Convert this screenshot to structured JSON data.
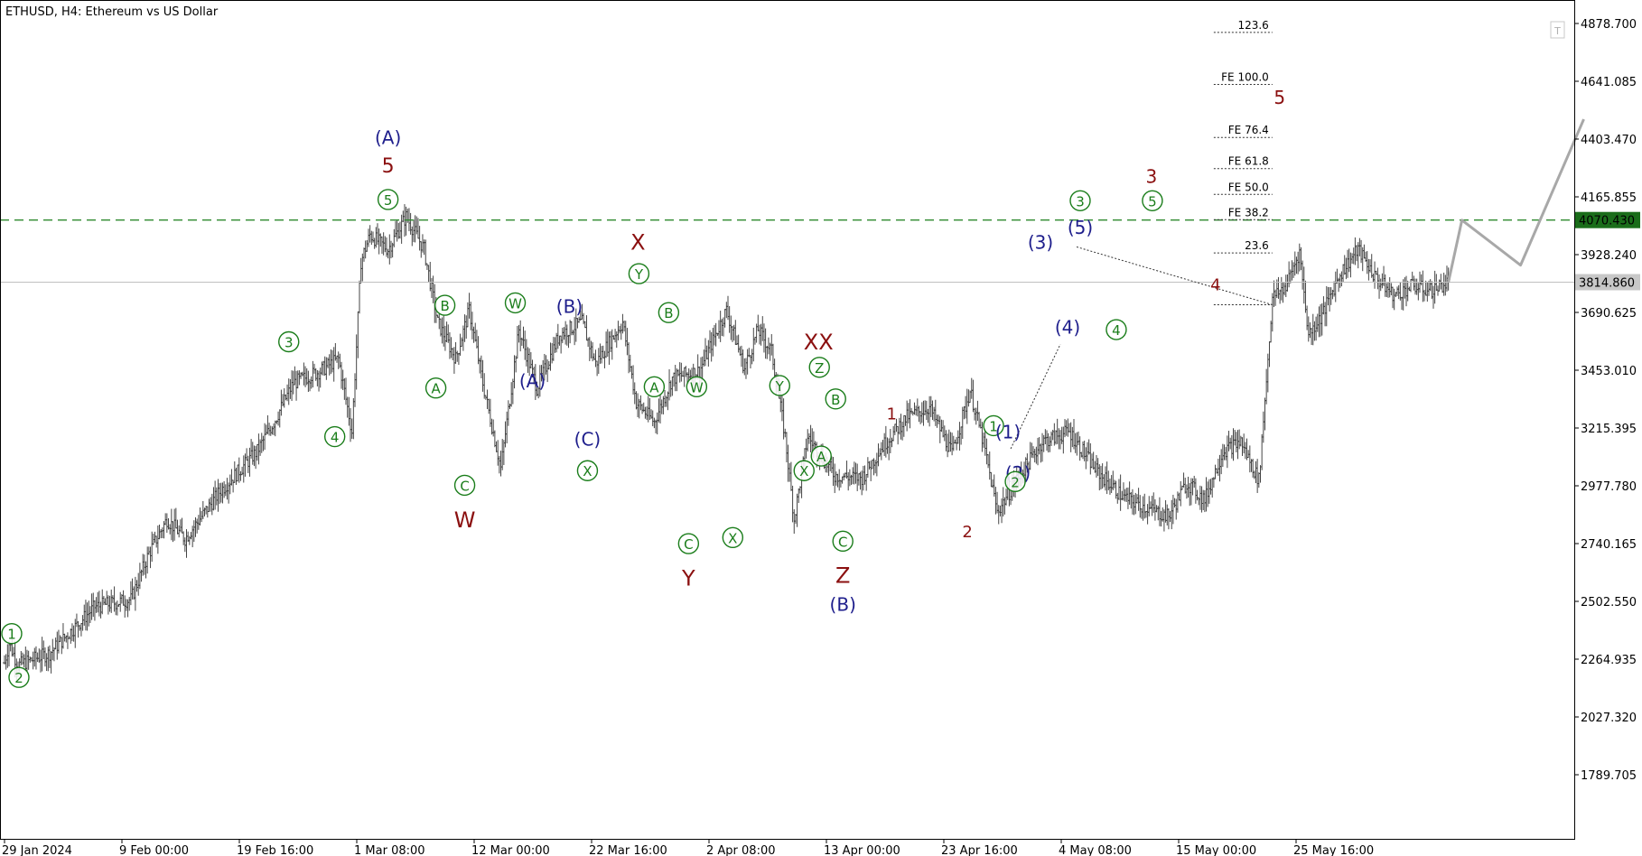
{
  "title": "ETHUSD, H4:  Ethereum vs US Dollar",
  "colors": {
    "green": "#1a7d1a",
    "navy": "#1e1e8c",
    "maroon": "#8b1010",
    "bars": "#444444",
    "projection": "#a8a8a8",
    "resistance": "#2f8a2f",
    "price_tag_bg": "#1a6d1a",
    "current_tag_bg": "#c8c8c8"
  },
  "chart_data": {
    "type": "ohlc-bars",
    "symbol": "ETHUSD",
    "timeframe": "H4",
    "ylim": [
      1600,
      4950
    ],
    "y_ticks": [
      1789.705,
      2027.32,
      2264.935,
      2502.55,
      2740.165,
      2977.78,
      3215.395,
      3453.01,
      3690.625,
      3928.24,
      4165.855,
      4403.47,
      4641.085,
      4878.7
    ],
    "x_tick_labels": [
      "29 Jan 2024",
      "9 Feb 00:00",
      "19 Feb 16:00",
      "1 Mar 08:00",
      "12 Mar 00:00",
      "22 Mar 16:00",
      "2 Apr 08:00",
      "13 Apr 00:00",
      "23 Apr 16:00",
      "4 May 08:00",
      "15 May 00:00",
      "25 May 16:00"
    ],
    "x_span_days": 173,
    "price_anchors": [
      [
        0.0,
        2250
      ],
      [
        0.5,
        2330
      ],
      [
        1.5,
        2240
      ],
      [
        5,
        2290
      ],
      [
        10,
        2480
      ],
      [
        14,
        2510
      ],
      [
        16,
        2700
      ],
      [
        18,
        2840
      ],
      [
        20,
        2760
      ],
      [
        24,
        2960
      ],
      [
        28,
        3120
      ],
      [
        30,
        3250
      ],
      [
        32,
        3400
      ],
      [
        35,
        3450
      ],
      [
        37,
        3500
      ],
      [
        38.5,
        3200
      ],
      [
        39.5,
        3900
      ],
      [
        40.5,
        4010
      ],
      [
        42.5,
        3950
      ],
      [
        44.5,
        4085
      ],
      [
        46.5,
        3950
      ],
      [
        48,
        3650
      ],
      [
        50,
        3500
      ],
      [
        51.5,
        3700
      ],
      [
        53,
        3400
      ],
      [
        55,
        3050
      ],
      [
        57,
        3620
      ],
      [
        59,
        3380
      ],
      [
        61.5,
        3600
      ],
      [
        64,
        3650
      ],
      [
        65.5,
        3480
      ],
      [
        68.5,
        3650
      ],
      [
        70,
        3320
      ],
      [
        72,
        3240
      ],
      [
        74,
        3420
      ],
      [
        77,
        3450
      ],
      [
        80,
        3700
      ],
      [
        82,
        3460
      ],
      [
        83.5,
        3620
      ],
      [
        85,
        3530
      ],
      [
        86.5,
        3180
      ],
      [
        87.5,
        2840
      ],
      [
        89,
        3180
      ],
      [
        92,
        3020
      ],
      [
        95,
        3010
      ],
      [
        97.5,
        3150
      ],
      [
        100,
        3260
      ],
      [
        102.5,
        3300
      ],
      [
        105,
        3110
      ],
      [
        107,
        3370
      ],
      [
        108.5,
        3150
      ],
      [
        110,
        2870
      ],
      [
        112.5,
        3020
      ],
      [
        115,
        3160
      ],
      [
        118,
        3200
      ],
      [
        121,
        3040
      ],
      [
        124,
        2930
      ],
      [
        127,
        2880
      ],
      [
        129,
        2850
      ],
      [
        131,
        2990
      ],
      [
        133,
        2920
      ],
      [
        135,
        3120
      ],
      [
        137,
        3160
      ],
      [
        139,
        3000
      ],
      [
        140.5,
        3750
      ],
      [
        142,
        3800
      ],
      [
        143.5,
        3940
      ],
      [
        144.5,
        3600
      ],
      [
        146,
        3680
      ],
      [
        148,
        3850
      ],
      [
        150,
        3950
      ],
      [
        152,
        3830
      ],
      [
        154,
        3760
      ],
      [
        156,
        3800
      ],
      [
        158,
        3780
      ],
      [
        160,
        3815
      ]
    ],
    "current_price_label": "3814.860",
    "resistance_level": 4070.43,
    "resistance_label": "4070.430",
    "fib_levels": [
      {
        "label": "123.6",
        "price": 4842
      },
      {
        "label": "FE 100.0",
        "price": 4628
      },
      {
        "label": "FE 76.4",
        "price": 4410
      },
      {
        "label": "FE 61.8",
        "price": 4282
      },
      {
        "label": "FE 50.0",
        "price": 4176
      },
      {
        "label": "FE 38.2",
        "price": 4072
      },
      {
        "label": "23.6",
        "price": 3935
      },
      {
        "label": "",
        "price": 3722
      }
    ],
    "projection_path": [
      [
        160,
        3815
      ],
      [
        161.5,
        4070
      ],
      [
        168,
        3885
      ],
      [
        175,
        4485
      ]
    ],
    "annotations": [
      {
        "t": "1",
        "c": "g",
        "d": 0.8,
        "p": 2370,
        "s": 20,
        "circled": true
      },
      {
        "t": "2",
        "c": "g",
        "d": 1.6,
        "p": 2190,
        "s": 20,
        "circled": true
      },
      {
        "t": "3",
        "c": "g",
        "d": 31.5,
        "p": 3570,
        "s": 20,
        "circled": true
      },
      {
        "t": "4",
        "c": "g",
        "d": 36.6,
        "p": 3180,
        "s": 20,
        "circled": true
      },
      {
        "t": "5",
        "c": "g",
        "d": 42.5,
        "p": 4155,
        "s": 20,
        "circled": true
      },
      {
        "t": "5",
        "c": "m",
        "d": 42.5,
        "p": 4295,
        "s": 22,
        "circled": false
      },
      {
        "t": "(A)",
        "c": "n",
        "d": 42.5,
        "p": 4410,
        "s": 20,
        "circled": false
      },
      {
        "t": "B",
        "c": "g",
        "d": 48.8,
        "p": 3720,
        "s": 20,
        "circled": true
      },
      {
        "t": "A",
        "c": "g",
        "d": 47.8,
        "p": 3380,
        "s": 20,
        "circled": true
      },
      {
        "t": "C",
        "c": "g",
        "d": 51,
        "p": 2980,
        "s": 20,
        "circled": true
      },
      {
        "t": "W",
        "c": "m",
        "d": 51,
        "p": 2840,
        "s": 24,
        "circled": false
      },
      {
        "t": "W",
        "c": "g",
        "d": 56.6,
        "p": 3730,
        "s": 20,
        "circled": true
      },
      {
        "t": "(A)",
        "c": "n",
        "d": 58.5,
        "p": 3410,
        "s": 20,
        "circled": false
      },
      {
        "t": "(B)",
        "c": "n",
        "d": 62.6,
        "p": 3715,
        "s": 20,
        "circled": false
      },
      {
        "t": "(C)",
        "c": "n",
        "d": 64.6,
        "p": 3170,
        "s": 20,
        "circled": false
      },
      {
        "t": "X",
        "c": "g",
        "d": 64.6,
        "p": 3040,
        "s": 20,
        "circled": true
      },
      {
        "t": "X",
        "c": "m",
        "d": 70.2,
        "p": 3980,
        "s": 24,
        "circled": false
      },
      {
        "t": "Y",
        "c": "g",
        "d": 70.3,
        "p": 3850,
        "s": 20,
        "circled": true
      },
      {
        "t": "B",
        "c": "g",
        "d": 73.6,
        "p": 3690,
        "s": 20,
        "circled": true
      },
      {
        "t": "A",
        "c": "g",
        "d": 72.0,
        "p": 3385,
        "s": 20,
        "circled": true
      },
      {
        "t": "W",
        "c": "g",
        "d": 76.7,
        "p": 3385,
        "s": 20,
        "circled": true
      },
      {
        "t": "C",
        "c": "g",
        "d": 75.8,
        "p": 2740,
        "s": 20,
        "circled": true
      },
      {
        "t": "Y",
        "c": "m",
        "d": 75.8,
        "p": 2600,
        "s": 24,
        "circled": false
      },
      {
        "t": "X",
        "c": "g",
        "d": 80.7,
        "p": 2765,
        "s": 20,
        "circled": true
      },
      {
        "t": "Y",
        "c": "g",
        "d": 85.9,
        "p": 3390,
        "s": 20,
        "circled": true
      },
      {
        "t": "XX",
        "c": "m",
        "d": 90.2,
        "p": 3570,
        "s": 24,
        "circled": false
      },
      {
        "t": "Z",
        "c": "g",
        "d": 90.3,
        "p": 3465,
        "s": 20,
        "circled": true
      },
      {
        "t": "B",
        "c": "g",
        "d": 92.1,
        "p": 3335,
        "s": 20,
        "circled": true
      },
      {
        "t": "A",
        "c": "g",
        "d": 90.5,
        "p": 3100,
        "s": 20,
        "circled": true
      },
      {
        "t": "X",
        "c": "g",
        "d": 88.6,
        "p": 3040,
        "s": 20,
        "circled": true
      },
      {
        "t": "C",
        "c": "g",
        "d": 92.9,
        "p": 2750,
        "s": 20,
        "circled": true
      },
      {
        "t": "Z",
        "c": "m",
        "d": 92.9,
        "p": 2610,
        "s": 24,
        "circled": false
      },
      {
        "t": "(B)",
        "c": "n",
        "d": 92.9,
        "p": 2490,
        "s": 20,
        "circled": false
      },
      {
        "t": "1",
        "c": "m",
        "d": 98.3,
        "p": 3275,
        "s": 18,
        "circled": false
      },
      {
        "t": "2",
        "c": "m",
        "d": 106.7,
        "p": 2790,
        "s": 18,
        "circled": false
      },
      {
        "t": "1",
        "c": "g",
        "d": 109.6,
        "p": 3225,
        "s": 20,
        "circled": true
      },
      {
        "t": "(1)",
        "c": "n",
        "d": 111.2,
        "p": 3200,
        "s": 20,
        "circled": false
      },
      {
        "t": "(2)",
        "c": "n",
        "d": 112.3,
        "p": 3030,
        "s": 20,
        "circled": false
      },
      {
        "t": "2",
        "c": "g",
        "d": 112.0,
        "p": 2995,
        "s": 20,
        "circled": true
      },
      {
        "t": "(3)",
        "c": "n",
        "d": 114.8,
        "p": 3980,
        "s": 20,
        "circled": false
      },
      {
        "t": "3",
        "c": "g",
        "d": 119.2,
        "p": 4150,
        "s": 20,
        "circled": true
      },
      {
        "t": "(5)",
        "c": "n",
        "d": 119.2,
        "p": 4040,
        "s": 20,
        "circled": false
      },
      {
        "t": "(4)",
        "c": "n",
        "d": 117.8,
        "p": 3630,
        "s": 20,
        "circled": false
      },
      {
        "t": "4",
        "c": "g",
        "d": 123.2,
        "p": 3620,
        "s": 20,
        "circled": true
      },
      {
        "t": "3",
        "c": "m",
        "d": 127.1,
        "p": 4250,
        "s": 20,
        "circled": false
      },
      {
        "t": "5",
        "c": "g",
        "d": 127.2,
        "p": 4150,
        "s": 20,
        "circled": true
      },
      {
        "t": "4",
        "c": "m",
        "d": 134.2,
        "p": 3805,
        "s": 18,
        "circled": false
      },
      {
        "t": "5",
        "c": "m",
        "d": 141.3,
        "p": 4575,
        "s": 20,
        "circled": false
      }
    ]
  }
}
